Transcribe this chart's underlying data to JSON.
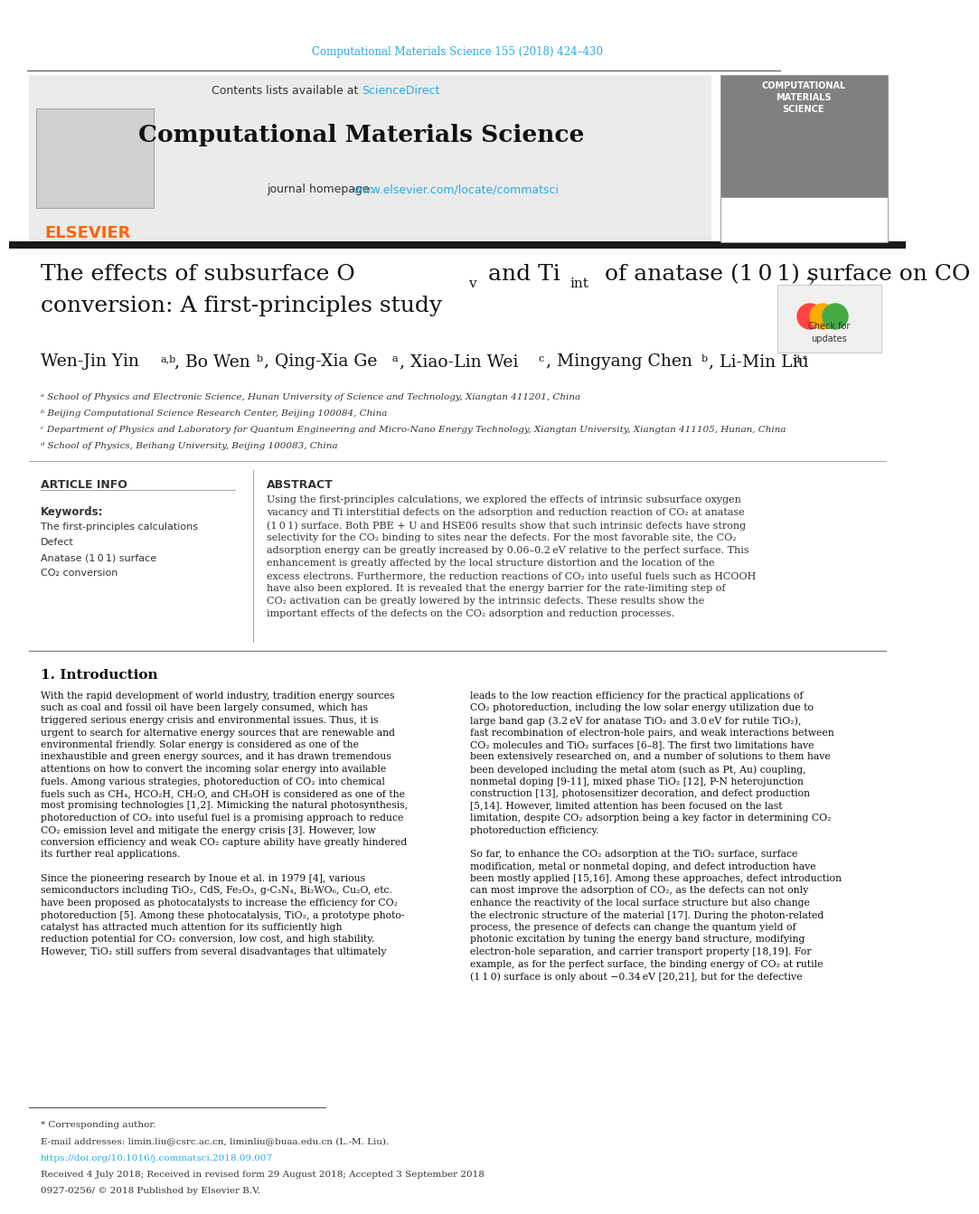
{
  "journal_ref": "Computational Materials Science 155 (2018) 424–430",
  "journal_ref_color": "#29ABE2",
  "header_bg": "#E8E8E8",
  "contents_text": "Contents lists available at ",
  "sciencedirect_text": "ScienceDirect",
  "sciencedirect_color": "#29ABE2",
  "journal_name": "Computational Materials Science",
  "journal_homepage_text": "journal homepage: ",
  "journal_url": "www.elsevier.com/locate/commatsci",
  "journal_url_color": "#29ABE2",
  "elsevier_color": "#FF6600",
  "title_line1": "The effects of subsurface O",
  "title_v": "v",
  "title_mid": " and Ti",
  "title_int": "int",
  "title_line2": " of anatase (1 0 1) surface on CO",
  "title_co2_sub": "2",
  "title_line3": "conversion: A first-principles study",
  "authors": "Wen-Jin Yin",
  "authors_sup1": "a,b",
  "authors2": ", Bo Wen",
  "authors2_sup": "b",
  "authors3": ", Qing-Xia Ge",
  "authors3_sup": "a",
  "authors4": ", Xiao-Lin Wei",
  "authors4_sup": "c",
  "authors5": ", Mingyang Chen",
  "authors5_sup": "b",
  "authors6": ", Li-Min Liu",
  "authors6_sup": "d,*",
  "affil_a": "ᵃ School of Physics and Electronic Science, Hunan University of Science and Technology, Xiangtan 411201, China",
  "affil_b": "ᵇ Beijing Computational Science Research Center, Beijing 100084, China",
  "affil_c": "ᶜ Department of Physics and Laboratory for Quantum Engineering and Micro-Nano Energy Technology, Xiangtan University, Xiangtan 411105, Hunan, China",
  "affil_d": "ᵈ School of Physics, Beihang University, Beijing 100083, China",
  "article_info_title": "ARTICLE INFO",
  "keywords_title": "Keywords:",
  "keywords": [
    "The first-principles calculations",
    "Defect",
    "Anatase (1 0 1) surface",
    "CO₂ conversion"
  ],
  "abstract_title": "ABSTRACT",
  "abstract_text": "Using the first-principles calculations, we explored the effects of intrinsic subsurface oxygen vacancy and Ti interstitial defects on the adsorption and reduction reaction of CO₂ at anatase (1 0 1) surface. Both PBE + U and HSE06 results show that such intrinsic defects have strong selectivity for the CO₂ binding to sites near the defects. For the most favorable site, the CO₂ adsorption energy can be greatly increased by 0.06–0.2 eV relative to the perfect surface. This enhancement is greatly affected by the local structure distortion and the location of the excess electrons. Furthermore, the reduction reactions of CO₂ into useful fuels such as HCOOH have also been explored. It is revealed that the energy barrier for the rate-limiting step of CO₂ activation can be greatly lowered by the intrinsic defects. These results show the important effects of the defects on the CO₂ adsorption and reduction processes.",
  "intro_title": "1. Introduction",
  "intro_col1": "With the rapid development of world industry, tradition energy sources such as coal and fossil oil have been largely consumed, which has triggered serious energy crisis and environmental issues. Thus, it is urgent to search for alternative energy sources that are renewable and environmental friendly. Solar energy is considered as one of the inexhaustible and green energy sources, and it has drawn tremendous attentions on how to convert the incoming solar energy into available fuels. Among various strategies, photoreduction of CO₂ into chemical fuels such as CH₄, HCO₂H, CH₂O, and CH₃OH is considered as one of the most promising technologies [1,2]. Mimicking the natural photosynthesis, photoreduction of CO₂ into useful fuel is a promising approach to reduce CO₂ emission level and mitigate the energy crisis [3]. However, low conversion efficiency and weak CO₂ capture ability have greatly hindered its further real applications.",
  "intro_col1_p2": "Since the pioneering research by Inoue et al. in 1979 [4], various semiconductors including TiO₂, CdS, Fe₂O₃, g-C₃N₄, Bi₂WO₆, Cu₂O, etc. have been proposed as photocatalysts to increase the efficiency for CO₂ photoreduction [5]. Among these photocatalysis, TiO₂, a prototype photo-catalyst has attracted much attention for its sufficiently high reduction potential for CO₂ conversion, low cost, and high stability. However, TiO₂ still suffers from several disadvantages that ultimately",
  "intro_col2": "leads to the low reaction efficiency for the practical applications of CO₂ photoreduction, including the low solar energy utilization due to large band gap (3.2 eV for anatase TiO₂ and 3.0 eV for rutile TiO₂), fast recombination of electron-hole pairs, and weak interactions between CO₂ molecules and TiO₂ surfaces [6–8]. The first two limitations have been extensively researched on, and a number of solutions to them have been developed including the metal atom (such as Pt, Au) coupling, nonmetal doping [9-11], mixed phase TiO₂ [12], P-N heterojunction construction [13], photosensitizer decoration, and defect production [5,14]. However, limited attention has been focused on the last limitation, despite CO₂ adsorption being a key factor in determining CO₂ photoreduction efficiency.",
  "intro_col2_p2": "So far, to enhance the CO₂ adsorption at the TiO₂ surface, surface modification, metal or nonmetal doping, and defect introduction have been mostly applied [15,16]. Among these approaches, defect introduction can most improve the adsorption of CO₂, as the defects can not only enhance the reactivity of the local surface structure but also change the electronic structure of the material [17]. During the photon-related process, the presence of defects can change the quantum yield of photonic excitation by tuning the energy band structure, modifying electron-hole separation, and carrier transport property [18,19]. For example, as for the perfect surface, the binding energy of CO₂ at rutile (1 1 0) surface is only about −0.34 eV [20,21], but for the defective",
  "footer_note": "* Corresponding author.",
  "footer_email": "E-mail addresses: limin.liu@csrc.ac.cn, liminliu@buaa.edu.cn (L.-M. Liu).",
  "footer_doi": "https://doi.org/10.1016/j.commatsci.2018.09.007",
  "footer_received": "Received 4 July 2018; Received in revised form 29 August 2018; Accepted 3 September 2018",
  "footer_issn": "0927-0256/ © 2018 Published by Elsevier B.V.",
  "divider_color": "#333333",
  "black_bar_color": "#1a1a1a",
  "bg_color": "#FFFFFF",
  "header_divider_color": "#555555"
}
